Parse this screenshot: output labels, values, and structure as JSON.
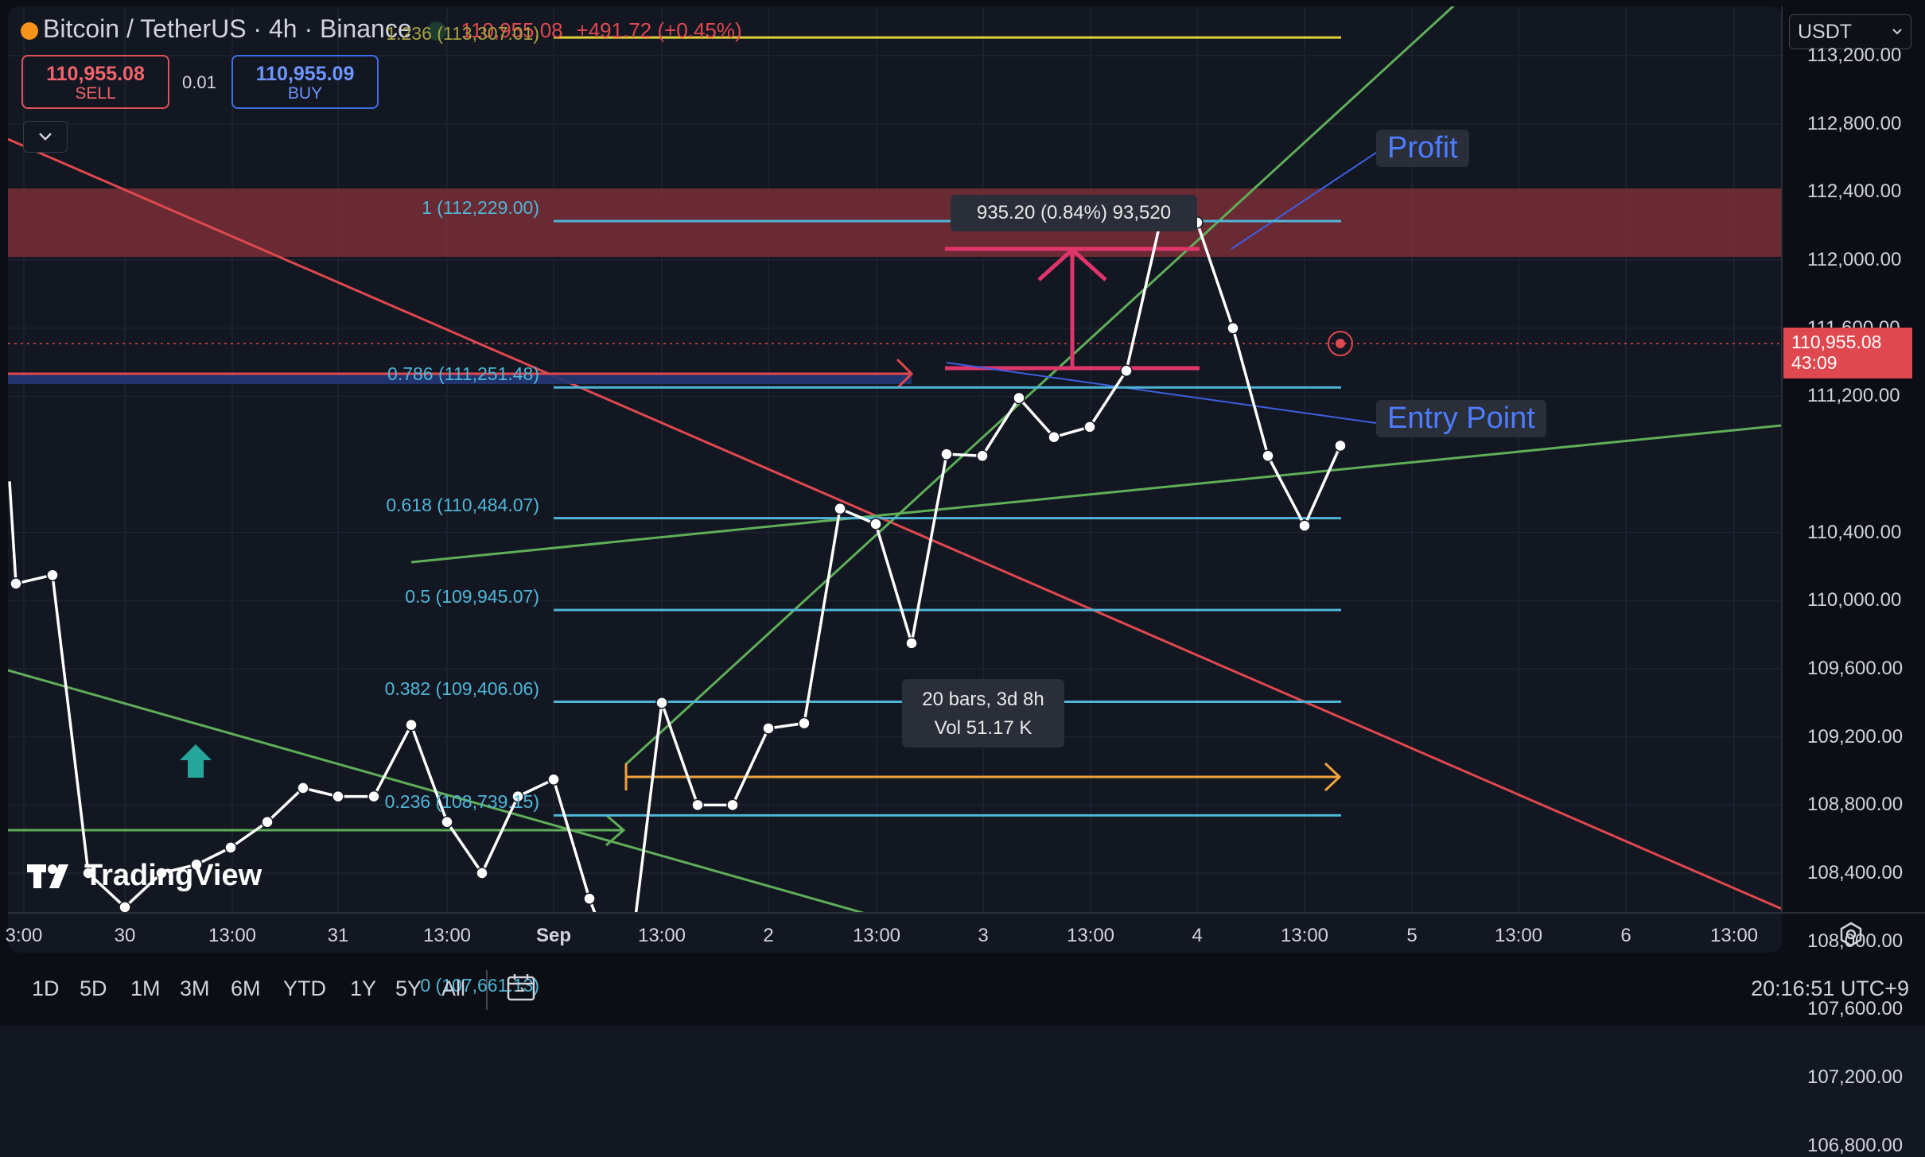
{
  "header": {
    "symbol": "Bitcoin / TetherUS · 4h · Binance",
    "last": "110,955.08",
    "change": "+491.72 (+0.45%)"
  },
  "trade": {
    "sell_price": "110,955.08",
    "sell_label": "SELL",
    "buy_price": "110,955.09",
    "buy_label": "BUY",
    "spread": "0.01"
  },
  "currency": "USDT",
  "price_tag": {
    "price": "110,955.08",
    "countdown": "43:09"
  },
  "y_labels": [
    "113,200.00",
    "112,800.00",
    "112,400.00",
    "112,000.00",
    "111,600.00",
    "111,200.00",
    "110,400.00",
    "110,000.00",
    "109,600.00",
    "109,200.00",
    "108,800.00",
    "108,400.00",
    "108,000.00",
    "107,600.00",
    "107,200.00",
    "106,800.00"
  ],
  "x_labels": [
    "3:00",
    "30",
    "13:00",
    "31",
    "13:00",
    "Sep",
    "13:00",
    "2",
    "13:00",
    "3",
    "13:00",
    "4",
    "13:00",
    "5",
    "13:00",
    "6",
    "13:00"
  ],
  "ranges": [
    "1D",
    "5D",
    "1M",
    "3M",
    "6M",
    "YTD",
    "1Y",
    "5Y",
    "All"
  ],
  "clock": "20:16:51 UTC+9",
  "fib_levels": [
    {
      "label": "1.236 (113,307.01)",
      "value": 113307.01
    },
    {
      "label": "1 (112,229.00)",
      "value": 112229.0
    },
    {
      "label": "0.786 (111,251.48)",
      "value": 111251.48
    },
    {
      "label": "0.618 (110,484.07)",
      "value": 110484.07
    },
    {
      "label": "0.5 (109,945.07)",
      "value": 109945.07
    },
    {
      "label": "0.382 (109,406.06)",
      "value": 109406.06
    },
    {
      "label": "0.236 (108,739.15)",
      "value": 108739.15
    },
    {
      "label": "0 (107,661.13)",
      "value": 107661.13
    }
  ],
  "measure": {
    "label": "935.20 (0.84%) 93,520"
  },
  "range_info": {
    "bars": "20 bars, 3d 8h",
    "vol": "Vol 51.17 K"
  },
  "callouts": {
    "profit": "Profit",
    "entry": "Entry Point"
  },
  "brand": "TradingView",
  "colors": {
    "bg": "#131722",
    "line": "#ffffff",
    "fib": "#4fb6d8",
    "down_trend": "#e0484f",
    "up_trend": "#5fae58",
    "zone": "#7a2e36",
    "measure": "#e0356b",
    "range": "#f0a23c"
  },
  "chart_data": {
    "type": "line",
    "symbol": "BTCUSDT",
    "interval": "4h",
    "x_unit": "bars (4h)",
    "ylim": [
      106600,
      113400
    ],
    "series": [
      {
        "name": "BTCUSDT",
        "values": [
          110100,
          110150,
          108400,
          108200,
          108400,
          108450,
          108550,
          108700,
          108900,
          108850,
          108850,
          109270,
          108700,
          108400,
          108850,
          108950,
          108250,
          107690,
          109400,
          108800,
          108800,
          109250,
          109280,
          110540,
          110450,
          109750,
          110860,
          110850,
          111190,
          110960,
          111020,
          111350,
          112250,
          112220,
          111600,
          110850,
          110440,
          110910
        ]
      }
    ],
    "extra_points_x0": 0
  }
}
